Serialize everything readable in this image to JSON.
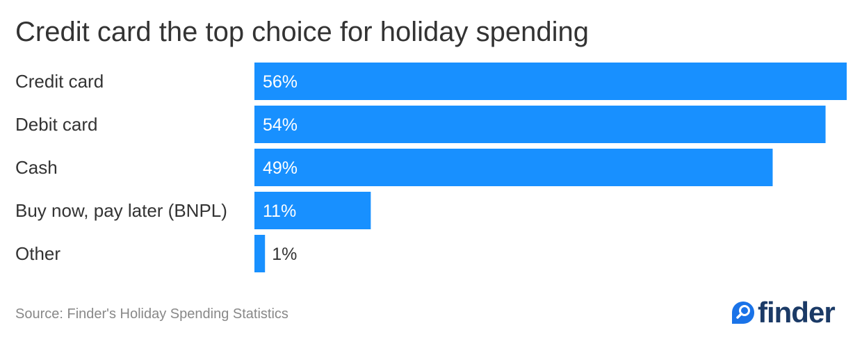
{
  "title": "Credit card the top choice for holiday spending",
  "source": "Source: Finder's Holiday Spending Statistics",
  "brand": {
    "name": "finder",
    "icon": "magnifier-pin-icon",
    "color": "#1b3a66",
    "icon_color": "#1a73e8"
  },
  "colors": {
    "bar": "#1890ff",
    "label_inside": "#ffffff",
    "label_outside": "#333333"
  },
  "chart_data": {
    "type": "bar",
    "orientation": "horizontal",
    "categories": [
      "Credit card",
      "Debit card",
      "Cash",
      "Buy now, pay later (BNPL)",
      "Other"
    ],
    "values": [
      56,
      54,
      49,
      11,
      1
    ],
    "value_labels": [
      "56%",
      "54%",
      "49%",
      "11%",
      "1%"
    ],
    "title": "Credit card the top choice for holiday spending",
    "xlim": [
      0,
      56
    ],
    "grid": false
  }
}
